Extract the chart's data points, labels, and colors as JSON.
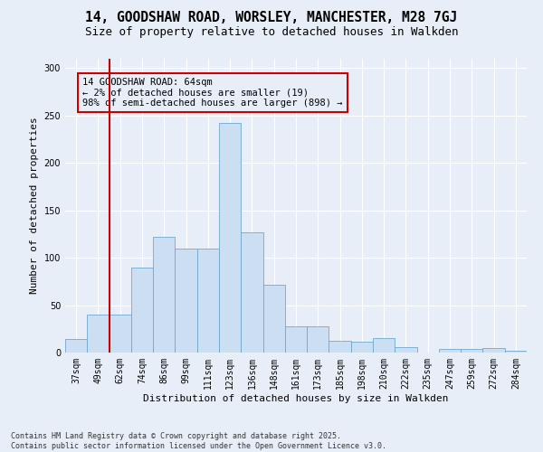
{
  "title": "14, GOODSHAW ROAD, WORSLEY, MANCHESTER, M28 7GJ",
  "subtitle": "Size of property relative to detached houses in Walkden",
  "xlabel": "Distribution of detached houses by size in Walkden",
  "ylabel": "Number of detached properties",
  "bar_color": "#ccdff2",
  "bar_edge_color": "#6fa8d0",
  "bg_color": "#e8eef8",
  "grid_color": "#ffffff",
  "categories": [
    "37sqm",
    "49sqm",
    "62sqm",
    "74sqm",
    "86sqm",
    "99sqm",
    "111sqm",
    "123sqm",
    "136sqm",
    "148sqm",
    "161sqm",
    "173sqm",
    "185sqm",
    "198sqm",
    "210sqm",
    "222sqm",
    "235sqm",
    "247sqm",
    "259sqm",
    "272sqm",
    "284sqm"
  ],
  "values": [
    14,
    40,
    40,
    90,
    122,
    110,
    110,
    242,
    127,
    72,
    28,
    28,
    12,
    11,
    15,
    6,
    0,
    4,
    4,
    5,
    2
  ],
  "ylim": [
    0,
    310
  ],
  "yticks": [
    0,
    50,
    100,
    150,
    200,
    250,
    300
  ],
  "vline_x": 2.0,
  "vline_color": "#cc0000",
  "annotation_text": "14 GOODSHAW ROAD: 64sqm\n← 2% of detached houses are smaller (19)\n98% of semi-detached houses are larger (898) →",
  "footer": "Contains HM Land Registry data © Crown copyright and database right 2025.\nContains public sector information licensed under the Open Government Licence v3.0.",
  "title_fontsize": 10.5,
  "subtitle_fontsize": 9,
  "label_fontsize": 8,
  "tick_fontsize": 7,
  "footer_fontsize": 6
}
